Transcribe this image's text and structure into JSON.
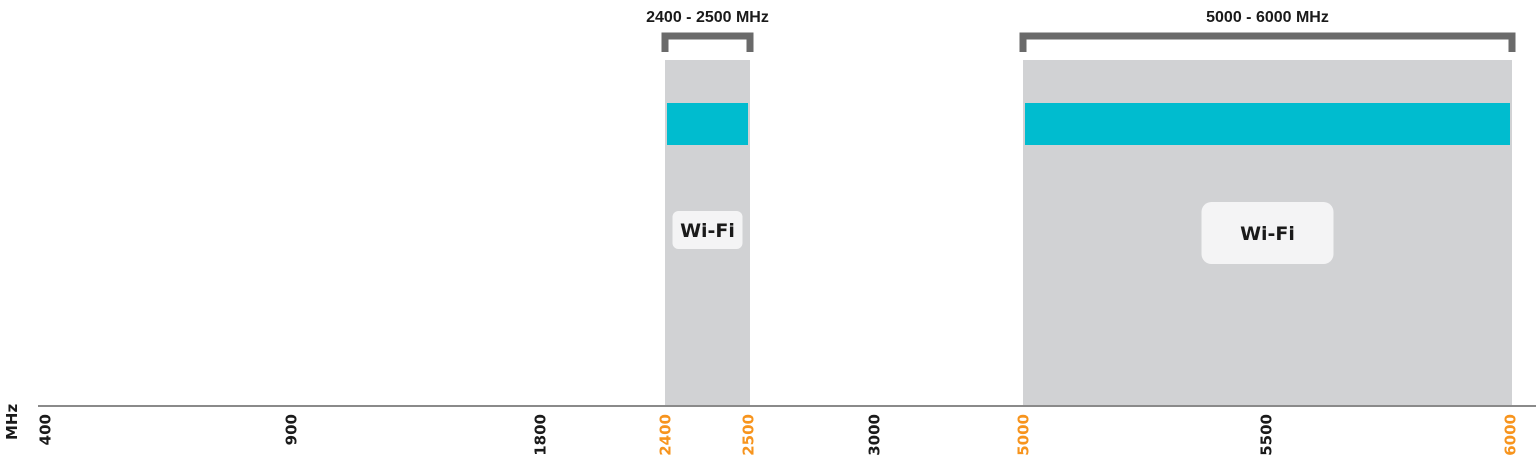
{
  "diagram": {
    "unit_label": "MHz",
    "colors": {
      "band_fill": "#d1d2d4",
      "band_strip": "#00bccf",
      "bracket": "#6a6a6a",
      "tick_default": "#1a1a1a",
      "tick_highlight": "#f7941d",
      "label_box": "#f4f4f5"
    },
    "ticks": [
      {
        "label": "400",
        "highlight": false
      },
      {
        "label": "900",
        "highlight": false
      },
      {
        "label": "1800",
        "highlight": false
      },
      {
        "label": "2400",
        "highlight": true
      },
      {
        "label": "2500",
        "highlight": true
      },
      {
        "label": "3000",
        "highlight": false
      },
      {
        "label": "5000",
        "highlight": true
      },
      {
        "label": "5500",
        "highlight": false
      },
      {
        "label": "6000",
        "highlight": true
      }
    ],
    "bands": [
      {
        "id": "band-2400",
        "range_label": "2400 - 2500 MHz",
        "start_tick": 3,
        "end_tick": 4,
        "label": "Wi-Fi"
      },
      {
        "id": "band-5000",
        "range_label": "5000 - 6000 MHz",
        "start_tick": 6,
        "end_tick": 8,
        "label": "Wi-Fi"
      }
    ]
  }
}
